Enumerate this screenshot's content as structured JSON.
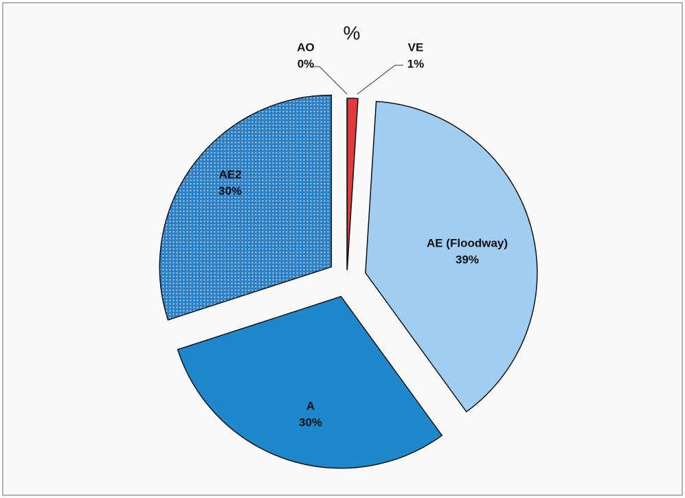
{
  "chart_data": {
    "type": "pie",
    "title": "%",
    "categories": [
      "VE",
      "AE (Floodway)",
      "A",
      "AE2",
      "AO"
    ],
    "values": [
      1,
      39,
      30,
      30,
      0
    ],
    "value_labels": [
      "1%",
      "39%",
      "30%",
      "30%",
      "0%"
    ],
    "colors": [
      "#e03a3a",
      "#a0cdf0",
      "#1f88cc",
      "#2d7fc6",
      "#ffffff"
    ],
    "patterns": [
      null,
      null,
      null,
      "dots",
      null
    ]
  }
}
